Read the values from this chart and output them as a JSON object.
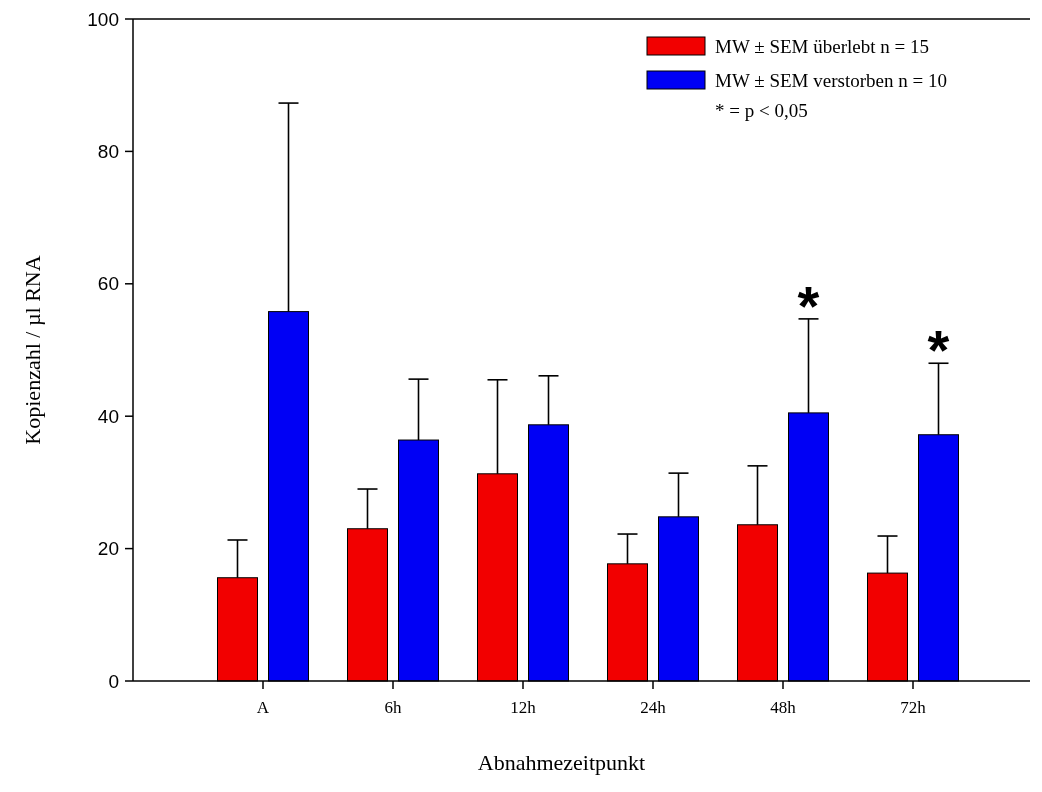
{
  "chart_data": {
    "type": "bar",
    "xlabel": "Abnahmezeitpunkt",
    "ylabel": "Kopienzahl / µl RNA",
    "categories": [
      "A",
      "6h",
      "12h",
      "24h",
      "48h",
      "72h"
    ],
    "series": [
      {
        "name": "MW ± SEM überlebt n = 15",
        "color": "#f20000",
        "values": [
          15.6,
          23.0,
          31.3,
          17.7,
          23.6,
          16.3
        ],
        "errors": [
          [
            15.6,
            21.3
          ],
          [
            23.0,
            29.0
          ],
          [
            31.3,
            45.5
          ],
          [
            17.7,
            22.2
          ],
          [
            23.6,
            32.5
          ],
          [
            16.3,
            21.9
          ]
        ]
      },
      {
        "name": "MW ± SEM verstorben n = 10",
        "color": "#0000f5",
        "values": [
          55.8,
          36.4,
          38.7,
          24.8,
          40.5,
          37.2
        ],
        "errors": [
          [
            55.8,
            87.3
          ],
          [
            36.4,
            45.6
          ],
          [
            38.7,
            46.1
          ],
          [
            24.8,
            31.4
          ],
          [
            40.5,
            54.7
          ],
          [
            37.2,
            48.0
          ]
        ]
      }
    ],
    "annotations": [
      "* = p < 0,05",
      "*",
      "*"
    ],
    "ylim": [
      0,
      100
    ],
    "yticks": [
      0,
      20,
      40,
      60,
      80,
      100
    ],
    "grid": false,
    "legend": "top right"
  }
}
